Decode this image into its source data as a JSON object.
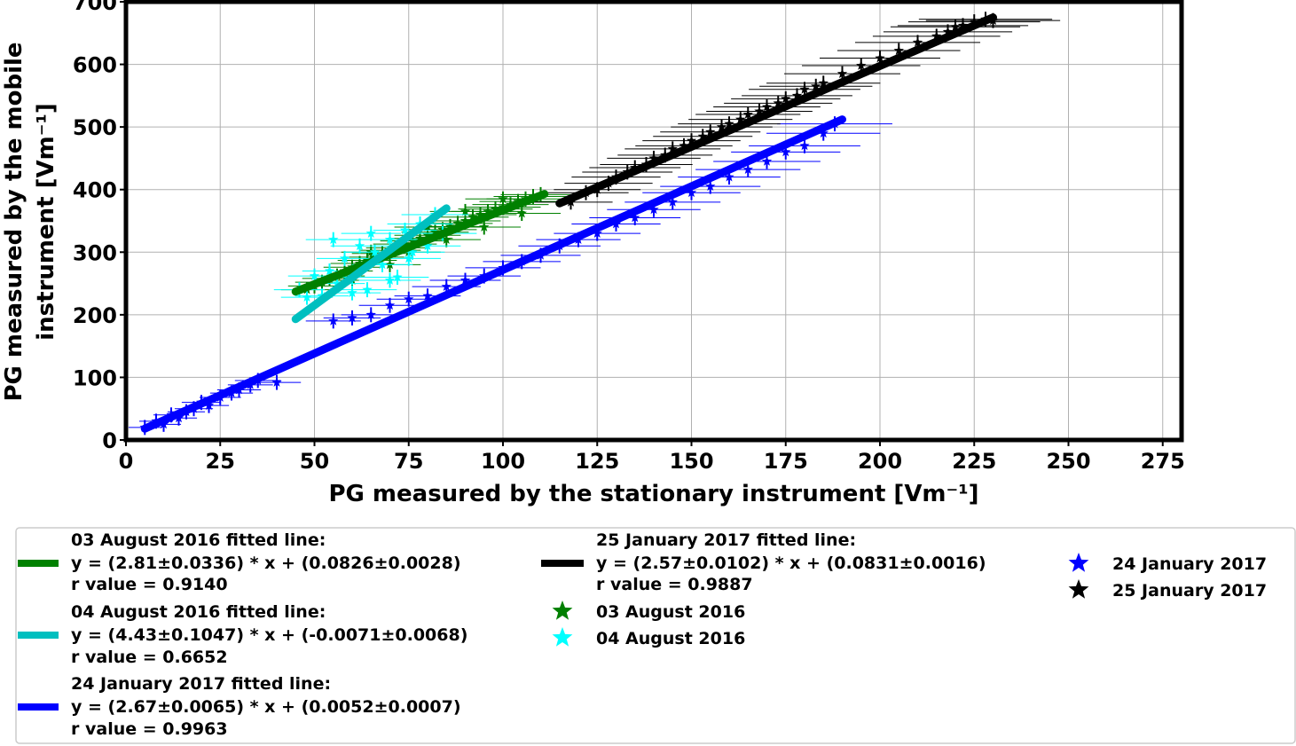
{
  "chart_data": {
    "type": "scatter",
    "xlabel": "PG measured by the stationary instrument [Vm⁻¹]",
    "ylabel_line1": "PG measured by the mobile",
    "ylabel_line2": "instrument [Vm⁻¹]",
    "xlim": [
      0,
      280
    ],
    "ylim": [
      0,
      700
    ],
    "xticks": [
      0,
      25,
      50,
      75,
      100,
      125,
      150,
      175,
      200,
      225,
      250,
      275
    ],
    "yticks": [
      0,
      100,
      200,
      300,
      400,
      500,
      600,
      700
    ],
    "grid": true,
    "legend_position": "below",
    "fitted_lines": [
      {
        "title": "03 August 2016 fitted line:",
        "equation": "y = (2.81±0.0336) * x + (0.0826±0.0028)",
        "r": "r value = 0.9140",
        "color": "#008000",
        "x": [
          45,
          111
        ],
        "y": [
          237,
          393
        ]
      },
      {
        "title": "04 August 2016 fitted line:",
        "equation": "y = (4.43±0.1047) * x + (-0.0071±0.0068)",
        "r": "r value = 0.6652",
        "color": "#00bfbf",
        "x": [
          45,
          85
        ],
        "y": [
          193,
          370
        ]
      },
      {
        "title": "24 January 2017 fitted line:",
        "equation": "y = (2.67±0.0065) * x + (0.0052±0.0007)",
        "r": "r value = 0.9963",
        "color": "#0000ff",
        "x": [
          5,
          190
        ],
        "y": [
          18,
          512
        ]
      },
      {
        "title": "25 January 2017 fitted line:",
        "equation": "y = (2.57±0.0102) * x + (0.0831±0.0016)",
        "r": "r value = 0.9887",
        "color": "#000000",
        "x": [
          115,
          230
        ],
        "y": [
          378,
          675
        ]
      }
    ],
    "series": [
      {
        "name": "03 August 2016",
        "color": "#008000",
        "points": [
          [
            48,
            240
          ],
          [
            50,
            246
          ],
          [
            52,
            252
          ],
          [
            54,
            258
          ],
          [
            56,
            262
          ],
          [
            58,
            270
          ],
          [
            60,
            276
          ],
          [
            62,
            282
          ],
          [
            64,
            287
          ],
          [
            66,
            292
          ],
          [
            68,
            298
          ],
          [
            70,
            303
          ],
          [
            72,
            307
          ],
          [
            74,
            313
          ],
          [
            76,
            318
          ],
          [
            78,
            322
          ],
          [
            80,
            327
          ],
          [
            82,
            332
          ],
          [
            84,
            336
          ],
          [
            86,
            341
          ],
          [
            88,
            346
          ],
          [
            90,
            350
          ],
          [
            92,
            356
          ],
          [
            94,
            360
          ],
          [
            96,
            365
          ],
          [
            98,
            369
          ],
          [
            100,
            372
          ],
          [
            102,
            376
          ],
          [
            104,
            381
          ],
          [
            106,
            385
          ],
          [
            108,
            389
          ],
          [
            110,
            392
          ],
          [
            60,
            255
          ],
          [
            65,
            300
          ],
          [
            70,
            280
          ],
          [
            75,
            300
          ],
          [
            80,
            340
          ],
          [
            85,
            320
          ],
          [
            90,
            365
          ],
          [
            95,
            340
          ],
          [
            100,
            385
          ],
          [
            105,
            362
          ]
        ]
      },
      {
        "name": "04 August 2016",
        "color": "#00ffff",
        "points": [
          [
            46,
            240
          ],
          [
            48,
            228
          ],
          [
            50,
            262
          ],
          [
            52,
            230
          ],
          [
            54,
            270
          ],
          [
            56,
            250
          ],
          [
            58,
            290
          ],
          [
            60,
            260
          ],
          [
            62,
            310
          ],
          [
            64,
            240
          ],
          [
            66,
            300
          ],
          [
            68,
            280
          ],
          [
            70,
            320
          ],
          [
            72,
            260
          ],
          [
            74,
            335
          ],
          [
            76,
            300
          ],
          [
            78,
            345
          ],
          [
            80,
            310
          ],
          [
            82,
            360
          ],
          [
            84,
            330
          ],
          [
            55,
            320
          ],
          [
            60,
            235
          ],
          [
            65,
            330
          ],
          [
            70,
            255
          ],
          [
            75,
            290
          ]
        ]
      },
      {
        "name": "24 January 2017",
        "color": "#0000ff",
        "points": [
          [
            5,
            20
          ],
          [
            8,
            30
          ],
          [
            10,
            25
          ],
          [
            12,
            40
          ],
          [
            14,
            35
          ],
          [
            16,
            45
          ],
          [
            18,
            50
          ],
          [
            20,
            60
          ],
          [
            22,
            55
          ],
          [
            25,
            68
          ],
          [
            28,
            75
          ],
          [
            30,
            80
          ],
          [
            33,
            88
          ],
          [
            35,
            95
          ],
          [
            40,
            92
          ],
          [
            55,
            190
          ],
          [
            60,
            195
          ],
          [
            65,
            200
          ],
          [
            70,
            215
          ],
          [
            75,
            225
          ],
          [
            80,
            230
          ],
          [
            85,
            245
          ],
          [
            90,
            255
          ],
          [
            95,
            262
          ],
          [
            100,
            275
          ],
          [
            105,
            285
          ],
          [
            110,
            295
          ],
          [
            115,
            310
          ],
          [
            120,
            320
          ],
          [
            125,
            330
          ],
          [
            130,
            345
          ],
          [
            135,
            355
          ],
          [
            140,
            368
          ],
          [
            145,
            380
          ],
          [
            150,
            395
          ],
          [
            155,
            405
          ],
          [
            160,
            420
          ],
          [
            165,
            432
          ],
          [
            170,
            445
          ],
          [
            175,
            460
          ],
          [
            180,
            470
          ],
          [
            185,
            490
          ],
          [
            188,
            505
          ]
        ]
      },
      {
        "name": "25 January 2017",
        "color": "#000000",
        "points": [
          [
            118,
            380
          ],
          [
            122,
            395
          ],
          [
            125,
            400
          ],
          [
            128,
            410
          ],
          [
            130,
            420
          ],
          [
            133,
            428
          ],
          [
            135,
            435
          ],
          [
            138,
            440
          ],
          [
            140,
            450
          ],
          [
            143,
            455
          ],
          [
            145,
            465
          ],
          [
            148,
            470
          ],
          [
            150,
            478
          ],
          [
            153,
            485
          ],
          [
            155,
            492
          ],
          [
            158,
            500
          ],
          [
            160,
            505
          ],
          [
            163,
            512
          ],
          [
            165,
            520
          ],
          [
            168,
            525
          ],
          [
            170,
            532
          ],
          [
            173,
            538
          ],
          [
            175,
            545
          ],
          [
            178,
            550
          ],
          [
            180,
            560
          ],
          [
            183,
            565
          ],
          [
            185,
            570
          ],
          [
            190,
            585
          ],
          [
            195,
            598
          ],
          [
            200,
            610
          ],
          [
            205,
            622
          ],
          [
            210,
            635
          ],
          [
            215,
            645
          ],
          [
            218,
            652
          ],
          [
            220,
            660
          ],
          [
            222,
            662
          ],
          [
            225,
            668
          ],
          [
            228,
            672
          ],
          [
            230,
            670
          ]
        ]
      }
    ]
  }
}
